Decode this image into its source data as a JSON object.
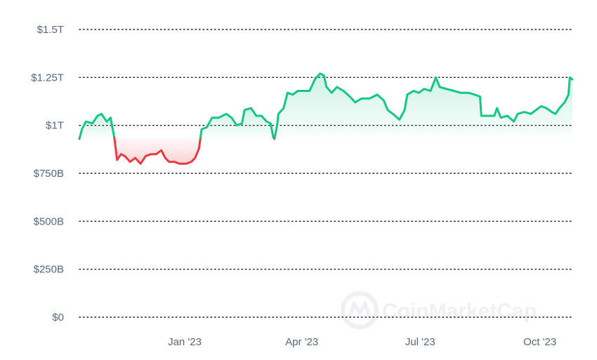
{
  "chart_data": {
    "type": "area",
    "y_unit": "USD total crypto market cap",
    "ylim": [
      0,
      1.5
    ],
    "y_ticks": [
      {
        "value": 1.5,
        "label": "$1.5T"
      },
      {
        "value": 1.25,
        "label": "$1.25T"
      },
      {
        "value": 1.0,
        "label": "$1T"
      },
      {
        "value": 0.75,
        "label": "$750B"
      },
      {
        "value": 0.5,
        "label": "$500B"
      },
      {
        "value": 0.25,
        "label": "$250B"
      },
      {
        "value": 0.0,
        "label": "$0"
      }
    ],
    "xlim": [
      "2022-10-12",
      "2023-10-26"
    ],
    "x_ticks": [
      {
        "date": "2023-01-01",
        "label": "Jan '23"
      },
      {
        "date": "2023-04-01",
        "label": "Apr '23"
      },
      {
        "date": "2023-07-01",
        "label": "Jul '23"
      },
      {
        "date": "2023-10-01",
        "label": "Oct '23"
      }
    ],
    "baseline": 0.935,
    "colors": {
      "above": "#16c784",
      "below": "#ea3943",
      "grid": "#1a1a2e",
      "tick": "#58667e"
    },
    "grid": "horizontal-dotted",
    "series": [
      {
        "points": [
          [
            "2022-10-12",
            0.93
          ],
          [
            "2022-10-14",
            0.98
          ],
          [
            "2022-10-17",
            1.02
          ],
          [
            "2022-10-22",
            1.01
          ],
          [
            "2022-10-26",
            1.05
          ],
          [
            "2022-10-29",
            1.06
          ],
          [
            "2022-11-02",
            1.02
          ],
          [
            "2022-11-05",
            1.04
          ],
          [
            "2022-11-08",
            0.93
          ],
          [
            "2022-11-10",
            0.82
          ],
          [
            "2022-11-13",
            0.85
          ],
          [
            "2022-11-16",
            0.84
          ],
          [
            "2022-11-20",
            0.81
          ],
          [
            "2022-11-24",
            0.83
          ],
          [
            "2022-11-28",
            0.8
          ],
          [
            "2022-12-02",
            0.84
          ],
          [
            "2022-12-06",
            0.85
          ],
          [
            "2022-12-10",
            0.85
          ],
          [
            "2022-12-14",
            0.87
          ],
          [
            "2022-12-17",
            0.83
          ],
          [
            "2022-12-20",
            0.81
          ],
          [
            "2022-12-24",
            0.81
          ],
          [
            "2022-12-28",
            0.8
          ],
          [
            "2023-01-02",
            0.8
          ],
          [
            "2023-01-06",
            0.81
          ],
          [
            "2023-01-09",
            0.83
          ],
          [
            "2023-01-12",
            0.88
          ],
          [
            "2023-01-14",
            0.98
          ],
          [
            "2023-01-18",
            0.99
          ],
          [
            "2023-01-22",
            1.04
          ],
          [
            "2023-01-27",
            1.04
          ],
          [
            "2023-02-02",
            1.06
          ],
          [
            "2023-02-06",
            1.04
          ],
          [
            "2023-02-10",
            1.0
          ],
          [
            "2023-02-14",
            1.01
          ],
          [
            "2023-02-16",
            1.08
          ],
          [
            "2023-02-21",
            1.09
          ],
          [
            "2023-02-25",
            1.05
          ],
          [
            "2023-03-01",
            1.05
          ],
          [
            "2023-03-05",
            1.02
          ],
          [
            "2023-03-08",
            1.01
          ],
          [
            "2023-03-10",
            0.94
          ],
          [
            "2023-03-11",
            0.93
          ],
          [
            "2023-03-13",
            1.0
          ],
          [
            "2023-03-14",
            1.06
          ],
          [
            "2023-03-18",
            1.09
          ],
          [
            "2023-03-21",
            1.17
          ],
          [
            "2023-03-25",
            1.16
          ],
          [
            "2023-03-29",
            1.18
          ],
          [
            "2023-04-02",
            1.18
          ],
          [
            "2023-04-07",
            1.18
          ],
          [
            "2023-04-11",
            1.24
          ],
          [
            "2023-04-15",
            1.27
          ],
          [
            "2023-04-18",
            1.26
          ],
          [
            "2023-04-20",
            1.2
          ],
          [
            "2023-04-24",
            1.17
          ],
          [
            "2023-04-28",
            1.2
          ],
          [
            "2023-05-03",
            1.18
          ],
          [
            "2023-05-08",
            1.15
          ],
          [
            "2023-05-12",
            1.12
          ],
          [
            "2023-05-17",
            1.14
          ],
          [
            "2023-05-23",
            1.14
          ],
          [
            "2023-05-29",
            1.16
          ],
          [
            "2023-06-03",
            1.13
          ],
          [
            "2023-06-06",
            1.08
          ],
          [
            "2023-06-10",
            1.06
          ],
          [
            "2023-06-15",
            1.03
          ],
          [
            "2023-06-19",
            1.08
          ],
          [
            "2023-06-21",
            1.16
          ],
          [
            "2023-06-26",
            1.18
          ],
          [
            "2023-06-30",
            1.17
          ],
          [
            "2023-07-04",
            1.19
          ],
          [
            "2023-07-09",
            1.18
          ],
          [
            "2023-07-13",
            1.25
          ],
          [
            "2023-07-16",
            1.2
          ],
          [
            "2023-07-21",
            1.19
          ],
          [
            "2023-07-27",
            1.18
          ],
          [
            "2023-08-01",
            1.17
          ],
          [
            "2023-08-07",
            1.17
          ],
          [
            "2023-08-12",
            1.16
          ],
          [
            "2023-08-16",
            1.15
          ],
          [
            "2023-08-17",
            1.05
          ],
          [
            "2023-08-22",
            1.05
          ],
          [
            "2023-08-27",
            1.05
          ],
          [
            "2023-08-29",
            1.09
          ],
          [
            "2023-09-01",
            1.04
          ],
          [
            "2023-09-06",
            1.05
          ],
          [
            "2023-09-11",
            1.02
          ],
          [
            "2023-09-14",
            1.06
          ],
          [
            "2023-09-19",
            1.07
          ],
          [
            "2023-09-24",
            1.06
          ],
          [
            "2023-09-28",
            1.08
          ],
          [
            "2023-10-02",
            1.1
          ],
          [
            "2023-10-06",
            1.09
          ],
          [
            "2023-10-10",
            1.07
          ],
          [
            "2023-10-13",
            1.06
          ],
          [
            "2023-10-16",
            1.09
          ],
          [
            "2023-10-20",
            1.12
          ],
          [
            "2023-10-23",
            1.16
          ],
          [
            "2023-10-24",
            1.25
          ],
          [
            "2023-10-26",
            1.24
          ]
        ]
      }
    ]
  },
  "watermark": {
    "text": "CoinMarketCap"
  }
}
